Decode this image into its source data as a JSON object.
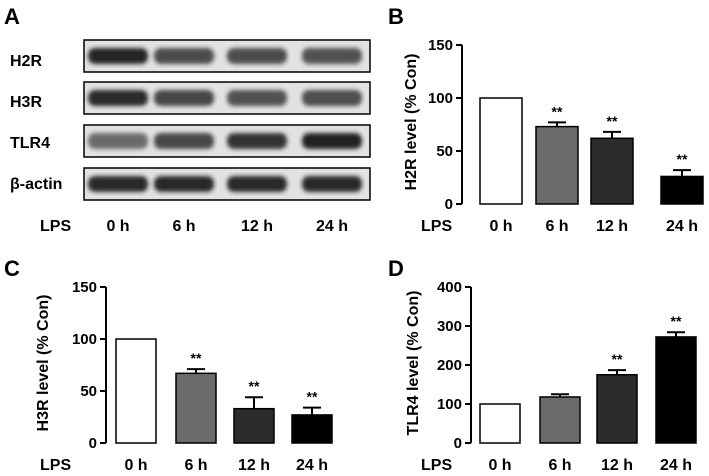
{
  "panels": {
    "a": {
      "letter": "A",
      "blot_labels": [
        "H2R",
        "H3R",
        "TLR4",
        "β-actin"
      ],
      "treatment_label": "LPS",
      "lanes": [
        "0 h",
        "6 h",
        "12 h",
        "24 h"
      ],
      "band_intensity": [
        [
          0.95,
          0.75,
          0.75,
          0.72
        ],
        [
          0.92,
          0.78,
          0.72,
          0.74
        ],
        [
          0.6,
          0.78,
          0.88,
          0.97
        ],
        [
          0.93,
          0.93,
          0.93,
          0.93
        ]
      ]
    },
    "b": {
      "letter": "B"
    },
    "c": {
      "letter": "C"
    },
    "d": {
      "letter": "D"
    }
  },
  "colors": {
    "bars": [
      "#ffffff",
      "#6b6b6b",
      "#2b2b2b",
      "#000000"
    ],
    "blot_bg": "#e2e2e2",
    "band": "#1a1a1a",
    "ink": "#000000"
  },
  "chart_data": [
    {
      "panel": "B",
      "type": "bar",
      "categories": [
        "0 h",
        "6 h",
        "12 h",
        "24 h"
      ],
      "category_axis_label": "LPS",
      "values": [
        100,
        73,
        62,
        26
      ],
      "errors": [
        0,
        4,
        6,
        6
      ],
      "annotations": [
        "",
        "**",
        "**",
        "**"
      ],
      "title": "",
      "xlabel": "",
      "ylabel": "H2R level (% Con)",
      "ylim": [
        0,
        150
      ],
      "yticks": [
        0,
        50,
        100,
        150
      ]
    },
    {
      "panel": "C",
      "type": "bar",
      "categories": [
        "0 h",
        "6 h",
        "12 h",
        "24 h"
      ],
      "category_axis_label": "LPS",
      "values": [
        100,
        67,
        33,
        27
      ],
      "errors": [
        0,
        4,
        11,
        7
      ],
      "annotations": [
        "",
        "**",
        "**",
        "**"
      ],
      "title": "",
      "xlabel": "",
      "ylabel": "H3R level (% Con)",
      "ylim": [
        0,
        150
      ],
      "yticks": [
        0,
        50,
        100,
        150
      ]
    },
    {
      "panel": "D",
      "type": "bar",
      "categories": [
        "0 h",
        "6 h",
        "12 h",
        "24 h"
      ],
      "category_axis_label": "LPS",
      "values": [
        100,
        118,
        175,
        272
      ],
      "errors": [
        0,
        7,
        12,
        12
      ],
      "annotations": [
        "",
        "",
        "**",
        "**"
      ],
      "title": "",
      "xlabel": "",
      "ylabel": "TLR4 level (% Con)",
      "ylim": [
        0,
        400
      ],
      "yticks": [
        0,
        100,
        200,
        300,
        400
      ]
    }
  ]
}
